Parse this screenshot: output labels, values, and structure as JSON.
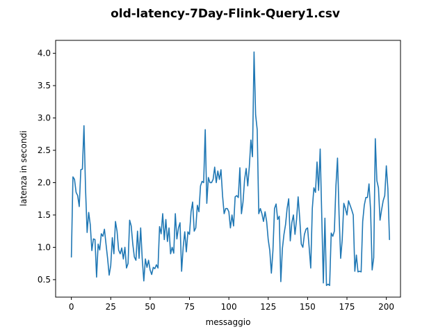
{
  "chart_data": {
    "type": "line",
    "title": "old-latency-7Day-Flink-Query1.csv",
    "xlabel": "messaggio",
    "ylabel": "latenza in secondi",
    "xlim": [
      -10,
      209
    ],
    "ylim": [
      0.23,
      4.2
    ],
    "x_ticks": [
      0,
      25,
      50,
      75,
      100,
      125,
      150,
      175,
      200
    ],
    "y_ticks": [
      0.5,
      1.0,
      1.5,
      2.0,
      2.5,
      3.0,
      3.5,
      4.0
    ],
    "x_tick_labels": [
      "0",
      "25",
      "50",
      "75",
      "100",
      "125",
      "150",
      "175",
      "200"
    ],
    "y_tick_labels": [
      "0.5",
      "1.0",
      "1.5",
      "2.0",
      "2.5",
      "3.0",
      "3.5",
      "4.0"
    ],
    "grid": false,
    "line_color": "#1f77b4",
    "series": [
      {
        "x_start": 0,
        "x_step": 1,
        "values": [
          0.85,
          2.09,
          2.05,
          1.85,
          1.8,
          1.63,
          2.2,
          2.21,
          2.88,
          1.9,
          1.23,
          1.54,
          1.35,
          0.95,
          1.13,
          1.12,
          0.54,
          1.05,
          0.96,
          1.21,
          1.17,
          1.28,
          1.05,
          0.83,
          0.57,
          0.72,
          1.15,
          0.9,
          1.4,
          1.25,
          0.96,
          0.9,
          0.99,
          0.82,
          1.0,
          0.68,
          0.75,
          1.42,
          1.33,
          1.05,
          0.85,
          0.8,
          1.25,
          0.83,
          1.3,
          0.82,
          0.48,
          0.82,
          0.69,
          0.8,
          0.65,
          0.58,
          0.69,
          0.67,
          0.73,
          0.68,
          1.32,
          1.21,
          1.52,
          1.12,
          1.43,
          1.09,
          1.3,
          0.9,
          1.0,
          0.91,
          1.52,
          1.13,
          1.3,
          1.38,
          0.63,
          1.0,
          1.24,
          0.93,
          1.24,
          1.2,
          1.55,
          1.7,
          1.25,
          1.3,
          1.65,
          1.55,
          1.95,
          2.02,
          2.0,
          2.82,
          1.68,
          2.08,
          2.0,
          2.0,
          2.05,
          2.24,
          2.0,
          2.18,
          2.05,
          2.2,
          1.8,
          1.52,
          1.6,
          1.6,
          1.55,
          1.3,
          1.5,
          1.33,
          1.78,
          1.8,
          1.77,
          2.23,
          1.52,
          1.7,
          2.05,
          2.22,
          1.95,
          2.25,
          2.66,
          2.4,
          4.02,
          3.05,
          2.82,
          1.52,
          1.6,
          1.52,
          1.4,
          1.55,
          1.4,
          1.12,
          0.95,
          0.6,
          0.95,
          1.6,
          1.67,
          1.43,
          1.48,
          0.47,
          0.98,
          1.2,
          1.35,
          1.6,
          1.75,
          1.1,
          1.38,
          1.5,
          1.2,
          1.43,
          1.78,
          1.45,
          1.05,
          1.0,
          1.2,
          1.28,
          1.3,
          1.0,
          0.68,
          1.6,
          1.92,
          1.85,
          2.32,
          1.88,
          2.52,
          1.48,
          0.45,
          1.45,
          0.41,
          0.43,
          0.41,
          1.22,
          1.17,
          1.25,
          1.95,
          2.38,
          1.5,
          0.83,
          1.12,
          1.68,
          1.6,
          1.5,
          1.72,
          1.65,
          1.58,
          1.5,
          0.63,
          0.88,
          0.62,
          0.63,
          0.62,
          1.4,
          1.65,
          1.77,
          1.77,
          1.98,
          1.58,
          0.65,
          0.84,
          2.68,
          2.03,
          1.92,
          1.42,
          1.58,
          1.72,
          1.8,
          2.26,
          1.9,
          1.12
        ]
      }
    ]
  }
}
